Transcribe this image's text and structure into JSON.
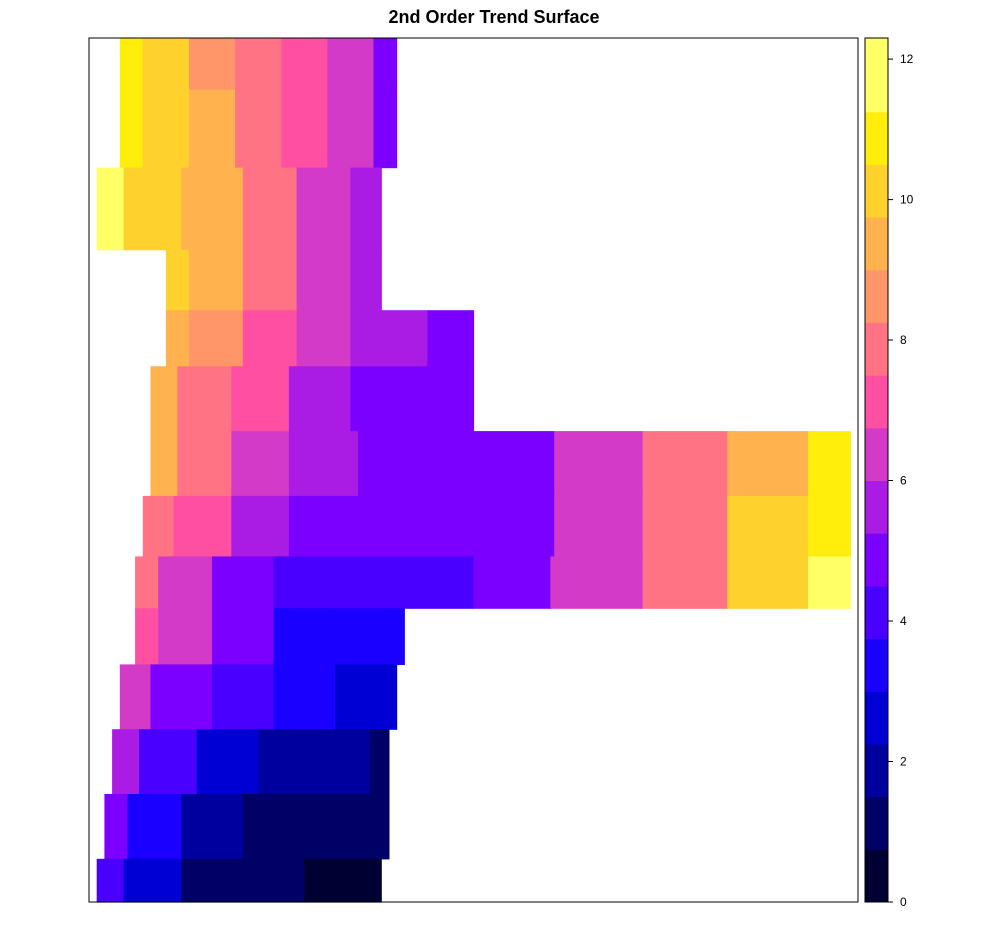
{
  "chart_data": {
    "type": "heatmap",
    "title": "2nd Order Trend Surface",
    "xlabel": "",
    "ylabel": "",
    "legend": {
      "position": "right",
      "orientation": "vertical",
      "range": [
        0,
        12.3
      ],
      "ticks": [
        0,
        2,
        4,
        6,
        8,
        10,
        12
      ],
      "tick_labels": [
        "0",
        "2",
        "4",
        "6",
        "8",
        "10",
        "12"
      ],
      "bins": [
        {
          "from": 0.0,
          "to": 0.75,
          "color": "#000033"
        },
        {
          "from": 0.75,
          "to": 1.5,
          "color": "#000066"
        },
        {
          "from": 1.5,
          "to": 2.25,
          "color": "#00009E"
        },
        {
          "from": 2.25,
          "to": 3.0,
          "color": "#0000D4"
        },
        {
          "from": 3.0,
          "to": 3.75,
          "color": "#1A00FF"
        },
        {
          "from": 3.75,
          "to": 4.5,
          "color": "#4900FF"
        },
        {
          "from": 4.5,
          "to": 5.25,
          "color": "#7B00FF"
        },
        {
          "from": 5.25,
          "to": 6.0,
          "color": "#AA1CE3"
        },
        {
          "from": 6.0,
          "to": 6.75,
          "color": "#D23AC7"
        },
        {
          "from": 6.75,
          "to": 7.5,
          "color": "#FF4FA2"
        },
        {
          "from": 7.5,
          "to": 8.25,
          "color": "#FF7384"
        },
        {
          "from": 8.25,
          "to": 9.0,
          "color": "#FF966A"
        },
        {
          "from": 9.0,
          "to": 9.75,
          "color": "#FFB24D"
        },
        {
          "from": 9.75,
          "to": 10.5,
          "color": "#FFD12C"
        },
        {
          "from": 10.5,
          "to": 11.25,
          "color": "#FFEE0C"
        },
        {
          "from": 11.25,
          "to": 12.3,
          "color": "#FFFF66"
        }
      ]
    },
    "surface": {
      "value_range": [
        0,
        12.3
      ],
      "rows": [
        {
          "y": 0.02,
          "extent": [
            0.04,
            0.4
          ],
          "samples": [
            [
              0.04,
              11.0
            ],
            [
              0.1,
              10.0
            ],
            [
              0.16,
              8.9
            ],
            [
              0.22,
              7.8
            ],
            [
              0.28,
              7.0
            ],
            [
              0.34,
              6.0
            ],
            [
              0.4,
              5.0
            ]
          ]
        },
        {
          "y": 0.1,
          "extent": [
            0.04,
            0.4
          ],
          "samples": [
            [
              0.04,
              11.2
            ],
            [
              0.1,
              10.2
            ],
            [
              0.16,
              9.0
            ],
            [
              0.22,
              8.0
            ],
            [
              0.28,
              7.0
            ],
            [
              0.34,
              6.1
            ],
            [
              0.4,
              5.2
            ]
          ]
        },
        {
          "y": 0.2,
          "extent": [
            0.01,
            0.38
          ],
          "samples": [
            [
              0.01,
              11.3
            ],
            [
              0.08,
              10.4
            ],
            [
              0.16,
              9.0
            ],
            [
              0.24,
              7.8
            ],
            [
              0.3,
              6.7
            ],
            [
              0.38,
              5.8
            ]
          ]
        },
        {
          "y": 0.29,
          "extent": [
            0.1,
            0.38
          ],
          "samples": [
            [
              0.1,
              10.0
            ],
            [
              0.16,
              9.0
            ],
            [
              0.24,
              7.7
            ],
            [
              0.3,
              6.6
            ],
            [
              0.38,
              5.6
            ]
          ]
        },
        {
          "y": 0.34,
          "extent": [
            0.1,
            0.5
          ],
          "samples": [
            [
              0.1,
              9.4
            ],
            [
              0.16,
              8.4
            ],
            [
              0.24,
              7.2
            ],
            [
              0.3,
              6.2
            ],
            [
              0.38,
              5.3
            ],
            [
              0.5,
              5.0
            ]
          ]
        },
        {
          "y": 0.42,
          "extent": [
            0.08,
            0.5
          ],
          "samples": [
            [
              0.08,
              9.2
            ],
            [
              0.15,
              8.0
            ],
            [
              0.22,
              6.9
            ],
            [
              0.3,
              5.9
            ],
            [
              0.38,
              5.1
            ],
            [
              0.5,
              5.0
            ]
          ]
        },
        {
          "y": 0.49,
          "extent": [
            0.08,
            0.99
          ],
          "samples": [
            [
              0.08,
              9.0
            ],
            [
              0.15,
              7.7
            ],
            [
              0.22,
              6.6
            ],
            [
              0.3,
              5.6
            ],
            [
              0.4,
              5.0
            ],
            [
              0.55,
              5.1
            ],
            [
              0.66,
              6.1
            ],
            [
              0.78,
              8.0
            ],
            [
              0.88,
              9.7
            ],
            [
              0.99,
              11.0
            ]
          ]
        },
        {
          "y": 0.57,
          "extent": [
            0.07,
            0.99
          ],
          "samples": [
            [
              0.07,
              8.2
            ],
            [
              0.15,
              7.0
            ],
            [
              0.22,
              5.8
            ],
            [
              0.3,
              4.9
            ],
            [
              0.4,
              4.7
            ],
            [
              0.55,
              5.0
            ],
            [
              0.66,
              6.2
            ],
            [
              0.78,
              8.1
            ],
            [
              0.88,
              9.8
            ],
            [
              0.99,
              11.2
            ]
          ]
        },
        {
          "y": 0.63,
          "extent": [
            0.06,
            0.99
          ],
          "samples": [
            [
              0.06,
              7.6
            ],
            [
              0.12,
              6.5
            ],
            [
              0.2,
              5.2
            ],
            [
              0.28,
              4.3
            ],
            [
              0.36,
              4.0
            ],
            [
              0.46,
              4.3
            ],
            [
              0.54,
              5.0
            ],
            [
              0.66,
              6.3
            ],
            [
              0.78,
              8.1
            ],
            [
              0.88,
              9.9
            ],
            [
              0.99,
              11.3
            ]
          ]
        },
        {
          "y": 0.69,
          "extent": [
            0.06,
            0.41
          ],
          "samples": [
            [
              0.06,
              7.2
            ],
            [
              0.12,
              6.0
            ],
            [
              0.2,
              4.6
            ],
            [
              0.28,
              3.7
            ],
            [
              0.36,
              3.4
            ],
            [
              0.41,
              3.2
            ]
          ]
        },
        {
          "y": 0.76,
          "extent": [
            0.04,
            0.4
          ],
          "samples": [
            [
              0.04,
              6.6
            ],
            [
              0.12,
              5.0
            ],
            [
              0.2,
              3.8
            ],
            [
              0.28,
              3.0
            ],
            [
              0.36,
              2.6
            ],
            [
              0.4,
              2.4
            ]
          ]
        },
        {
          "y": 0.84,
          "extent": [
            0.03,
            0.39
          ],
          "samples": [
            [
              0.03,
              5.8
            ],
            [
              0.1,
              4.0
            ],
            [
              0.18,
              2.8
            ],
            [
              0.26,
              2.0
            ],
            [
              0.34,
              1.6
            ],
            [
              0.39,
              1.4
            ]
          ]
        },
        {
          "y": 0.91,
          "extent": [
            0.02,
            0.39
          ],
          "samples": [
            [
              0.02,
              4.8
            ],
            [
              0.08,
              3.2
            ],
            [
              0.16,
              2.0
            ],
            [
              0.24,
              1.3
            ],
            [
              0.32,
              1.0
            ],
            [
              0.39,
              0.9
            ]
          ]
        },
        {
          "y": 0.99,
          "extent": [
            0.01,
            0.38
          ],
          "samples": [
            [
              0.01,
              4.0
            ],
            [
              0.08,
              2.5
            ],
            [
              0.16,
              1.4
            ],
            [
              0.24,
              0.9
            ],
            [
              0.32,
              0.7
            ],
            [
              0.38,
              0.6
            ]
          ]
        }
      ]
    }
  }
}
